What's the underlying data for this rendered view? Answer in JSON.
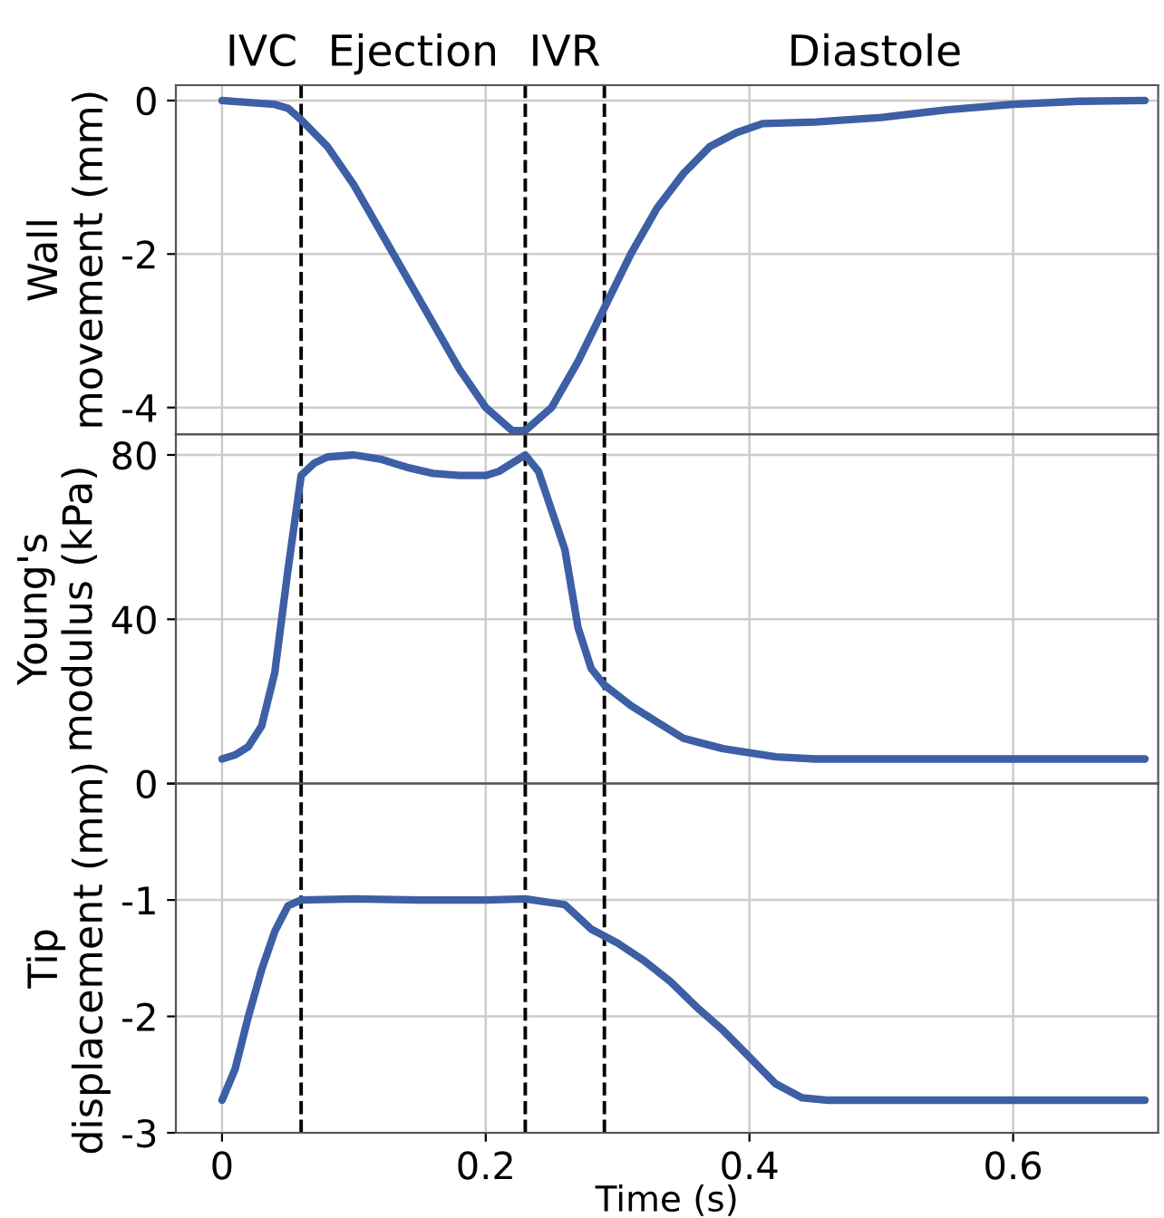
{
  "chart_data": [
    {
      "type": "line",
      "ylabel": "Wall\nmovement (mm)",
      "xlim": [
        -0.035,
        0.71
      ],
      "xticks": [
        0,
        0.2,
        0.4,
        0.6
      ],
      "ylim": [
        -4.35,
        0.2
      ],
      "yticks": [
        {
          "value": 0,
          "label": "0"
        },
        {
          "value": -2,
          "label": "-2"
        },
        {
          "value": -4,
          "label": "-4"
        }
      ],
      "tick_labels": "y",
      "grid": true,
      "line_style": "solid",
      "marker": "none",
      "annotations": [
        "IVC",
        "Ejection",
        "IVR",
        "Diastole"
      ],
      "ref_lines": [
        {
          "axis": "x",
          "value": 0.06,
          "color": "#000000",
          "line_style": "dashed"
        },
        {
          "axis": "x",
          "value": 0.23,
          "color": "#000000",
          "line_style": "dashed"
        },
        {
          "axis": "x",
          "value": 0.29,
          "color": "#000000",
          "line_style": "dashed"
        }
      ],
      "x": [
        0,
        0.04,
        0.05,
        0.06,
        0.08,
        0.1,
        0.12,
        0.14,
        0.16,
        0.18,
        0.2,
        0.22,
        0.23,
        0.25,
        0.27,
        0.29,
        0.31,
        0.33,
        0.35,
        0.37,
        0.39,
        0.41,
        0.45,
        0.5,
        0.55,
        0.6,
        0.65,
        0.7
      ],
      "series": [
        {
          "color": "#3d5fa5",
          "values": [
            0,
            -0.05,
            -0.1,
            -0.25,
            -0.6,
            -1.1,
            -1.7,
            -2.3,
            -2.9,
            -3.5,
            -4.0,
            -4.3,
            -4.3,
            -4.0,
            -3.4,
            -2.7,
            -2.0,
            -1.4,
            -0.95,
            -0.6,
            -0.42,
            -0.3,
            -0.28,
            -0.22,
            -0.12,
            -0.05,
            -0.01,
            0
          ]
        }
      ]
    },
    {
      "type": "line",
      "ylabel": "Young's\nmodulus (kPa)",
      "xlim": [
        -0.035,
        0.71
      ],
      "xticks": [
        0,
        0.2,
        0.4,
        0.6
      ],
      "ylim": [
        0,
        85
      ],
      "yticks": [
        0,
        40,
        80
      ],
      "tick_labels": "y",
      "grid": true,
      "line_style": "solid",
      "marker": "none",
      "ref_lines": [
        {
          "axis": "x",
          "value": 0.06,
          "color": "#000000",
          "line_style": "dashed"
        },
        {
          "axis": "x",
          "value": 0.23,
          "color": "#000000",
          "line_style": "dashed"
        },
        {
          "axis": "x",
          "value": 0.29,
          "color": "#000000",
          "line_style": "dashed"
        }
      ],
      "x": [
        0,
        0.01,
        0.02,
        0.03,
        0.04,
        0.05,
        0.06,
        0.07,
        0.08,
        0.1,
        0.12,
        0.14,
        0.16,
        0.18,
        0.2,
        0.21,
        0.23,
        0.24,
        0.26,
        0.27,
        0.28,
        0.29,
        0.31,
        0.33,
        0.35,
        0.38,
        0.42,
        0.45,
        0.7
      ],
      "series": [
        {
          "color": "#3d5fa5",
          "values": [
            6,
            7,
            9,
            14,
            27,
            52,
            75,
            78,
            79.5,
            80,
            79,
            77,
            75.5,
            75,
            75,
            76,
            80,
            76,
            57,
            38,
            28,
            24,
            19,
            15,
            11,
            8.5,
            6.5,
            6,
            6
          ]
        }
      ]
    },
    {
      "type": "line",
      "ylabel": "Tip\ndisplacement (mm)",
      "xlabel": "Time (s)",
      "xlim": [
        -0.035,
        0.71
      ],
      "xticks": [
        0,
        0.2,
        0.4,
        0.6
      ],
      "ylim": [
        -3,
        0
      ],
      "yticks": [
        {
          "value": 0,
          "label": null
        },
        {
          "value": -1,
          "label": "-1"
        },
        {
          "value": -2,
          "label": "-2"
        },
        {
          "value": -3,
          "label": "-3"
        }
      ],
      "grid": true,
      "line_style": "solid",
      "marker": "none",
      "ref_lines": [
        {
          "axis": "x",
          "value": 0.06,
          "color": "#000000",
          "line_style": "dashed"
        },
        {
          "axis": "x",
          "value": 0.23,
          "color": "#000000",
          "line_style": "dashed"
        },
        {
          "axis": "x",
          "value": 0.29,
          "color": "#000000",
          "line_style": "dashed"
        }
      ],
      "x": [
        0,
        0.01,
        0.02,
        0.03,
        0.04,
        0.05,
        0.06,
        0.1,
        0.15,
        0.2,
        0.23,
        0.26,
        0.28,
        0.3,
        0.32,
        0.34,
        0.36,
        0.38,
        0.4,
        0.42,
        0.44,
        0.46,
        0.7
      ],
      "series": [
        {
          "color": "#3d5fa5",
          "values": [
            -2.72,
            -2.45,
            -2.0,
            -1.6,
            -1.27,
            -1.05,
            -1.0,
            -0.99,
            -1.0,
            -1.0,
            -0.99,
            -1.04,
            -1.25,
            -1.37,
            -1.52,
            -1.7,
            -1.92,
            -2.12,
            -2.35,
            -2.58,
            -2.7,
            -2.72,
            -2.72
          ]
        }
      ]
    }
  ]
}
